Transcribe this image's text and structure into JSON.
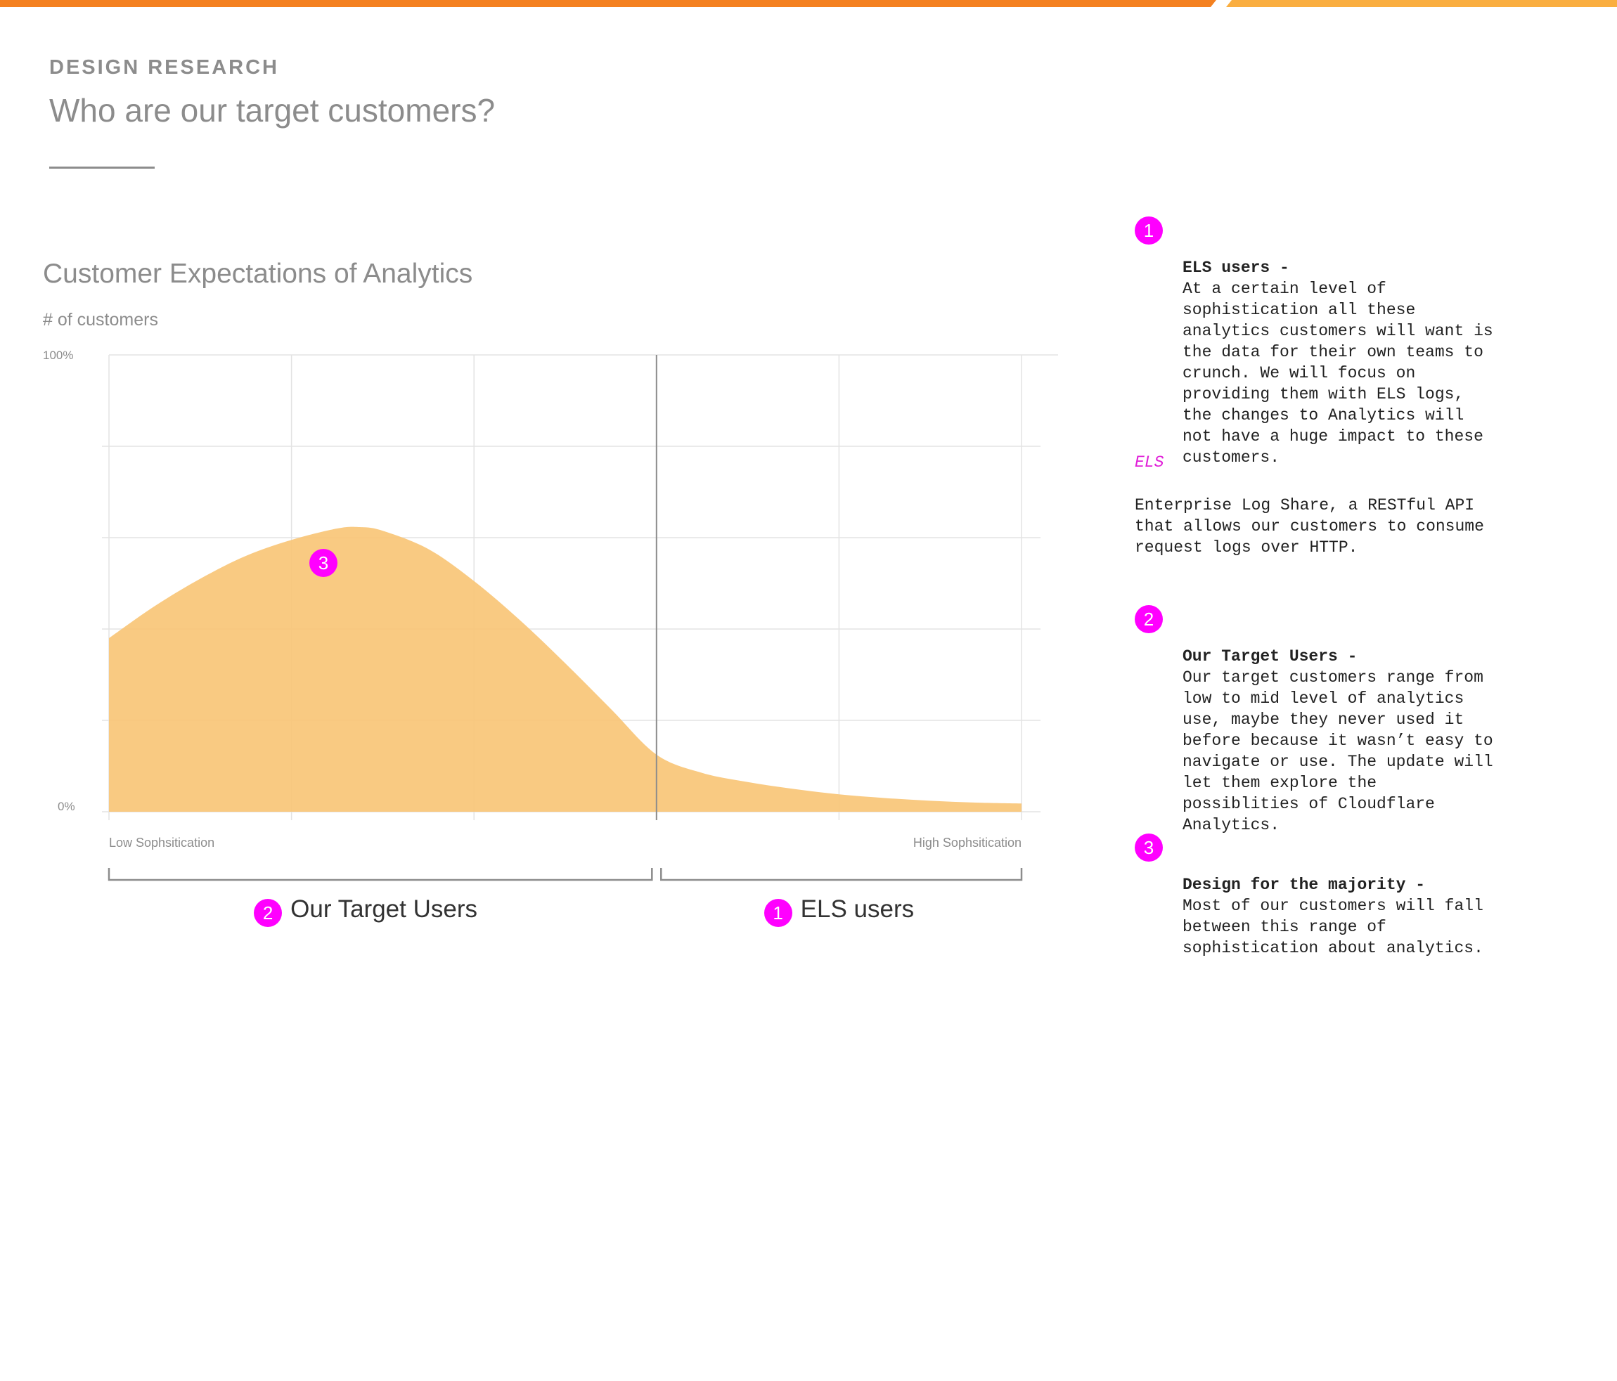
{
  "header": {
    "eyebrow": "DESIGN RESEARCH",
    "title": "Who are our target customers?"
  },
  "colors": {
    "accent_orange": "#f48120",
    "accent_light_orange": "#faae40",
    "area_fill": "#f8c577",
    "badge": "#ff00ff",
    "grid": "#e3e3e3",
    "text_muted": "#8c8c8c"
  },
  "chart_data": {
    "type": "area",
    "title": "Customer Expectations of Analytics",
    "ylabel": "# of customers",
    "y_ticks": [
      "100%",
      "0%"
    ],
    "x_tick_labels": [
      "Low Sophsitication",
      "High Sophsitication"
    ],
    "ylim": [
      0,
      100
    ],
    "xlim": [
      0,
      10
    ],
    "grid": true,
    "series": [
      {
        "points": [
          [
            0,
            38
          ],
          [
            0.5,
            45
          ],
          [
            1,
            51
          ],
          [
            1.5,
            56
          ],
          [
            2,
            59.5
          ],
          [
            2.5,
            62
          ],
          [
            2.75,
            62.3
          ],
          [
            3,
            61.5
          ],
          [
            3.5,
            57.5
          ],
          [
            4,
            50.5
          ],
          [
            4.5,
            42
          ],
          [
            5,
            32.5
          ],
          [
            5.5,
            22.5
          ],
          [
            6,
            12.5
          ],
          [
            6.5,
            8.5
          ],
          [
            7,
            6.5
          ],
          [
            7.5,
            5
          ],
          [
            8,
            3.8
          ],
          [
            8.5,
            3
          ],
          [
            9,
            2.4
          ],
          [
            9.5,
            2
          ],
          [
            10,
            1.8
          ]
        ]
      }
    ],
    "divider_x": 6,
    "annotation": {
      "label": "3",
      "x": 2.35,
      "y": 54.5
    },
    "ranges": [
      {
        "badge": "2",
        "label": "Our Target Users",
        "from": 0,
        "to": 5.95
      },
      {
        "badge": "1",
        "label": "ELS users",
        "from": 6.05,
        "to": 10
      }
    ]
  },
  "notes": [
    {
      "badge": "1",
      "heading": "ELS users -",
      "body": "At a certain level of\nsophistication all these\nanalytics customers will want is\nthe data for their own teams to\ncrunch. We will focus on\nproviding them with ELS logs,\nthe changes to Analytics will\nnot have a huge impact to these\ncustomers."
    },
    {
      "badge": "2",
      "heading": "Our Target Users -",
      "body": "Our target customers range from\nlow to mid level of analytics\nuse, maybe they never used it\nbefore because it wasn’t easy to\nnavigate or use. The update will\nlet them explore the\npossiblities of Cloudflare\nAnalytics."
    },
    {
      "badge": "3",
      "heading": "Design for the majority -",
      "body": "Most of our customers will fall\nbetween this range of\nsophistication about analytics."
    }
  ],
  "glossary": {
    "term": "ELS",
    "definition": "Enterprise Log Share, a RESTful API\nthat allows our customers to consume\nrequest logs over HTTP."
  }
}
